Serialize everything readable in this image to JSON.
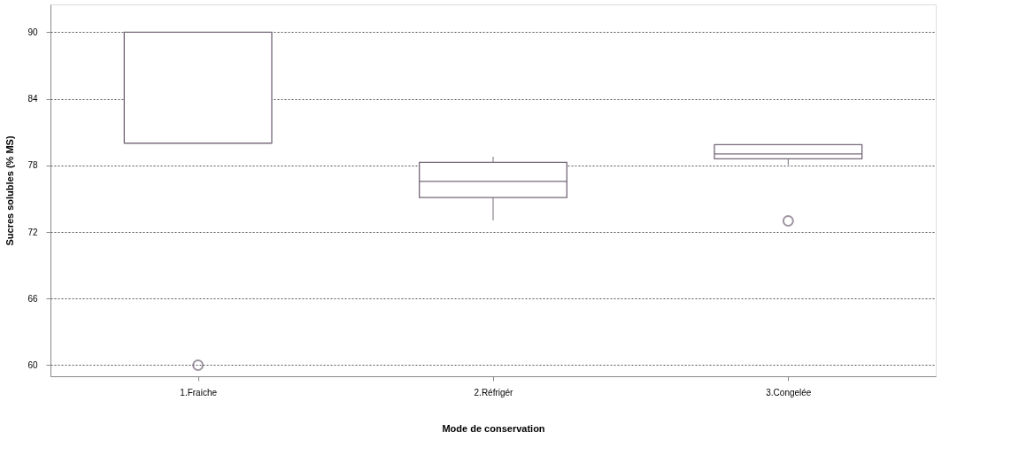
{
  "chart_data": {
    "type": "box",
    "xlabel": "Mode de conservation",
    "ylabel": "Sucres solubles (% MS)",
    "categories": [
      "1.Fraiche",
      "2.Réfrigér",
      "3.Congelée"
    ],
    "color": "#76687a",
    "boxes": [
      {
        "low": 80,
        "q1": 80,
        "median": 80,
        "q3": 90,
        "high": 90,
        "outliers": [
          60
        ]
      },
      {
        "low": 73.05,
        "q1": 75.1,
        "median": 76.55,
        "q3": 78.27,
        "high": 78.77
      },
      {
        "low": 78.05,
        "q1": 78.59,
        "median": 79.03,
        "q3": 79.86,
        "high": 79.86,
        "outliers": [
          73
        ]
      }
    ],
    "ylim": [
      59,
      92.5
    ],
    "yticks": [
      60,
      66,
      72,
      78,
      84,
      90
    ],
    "grid": "y"
  }
}
